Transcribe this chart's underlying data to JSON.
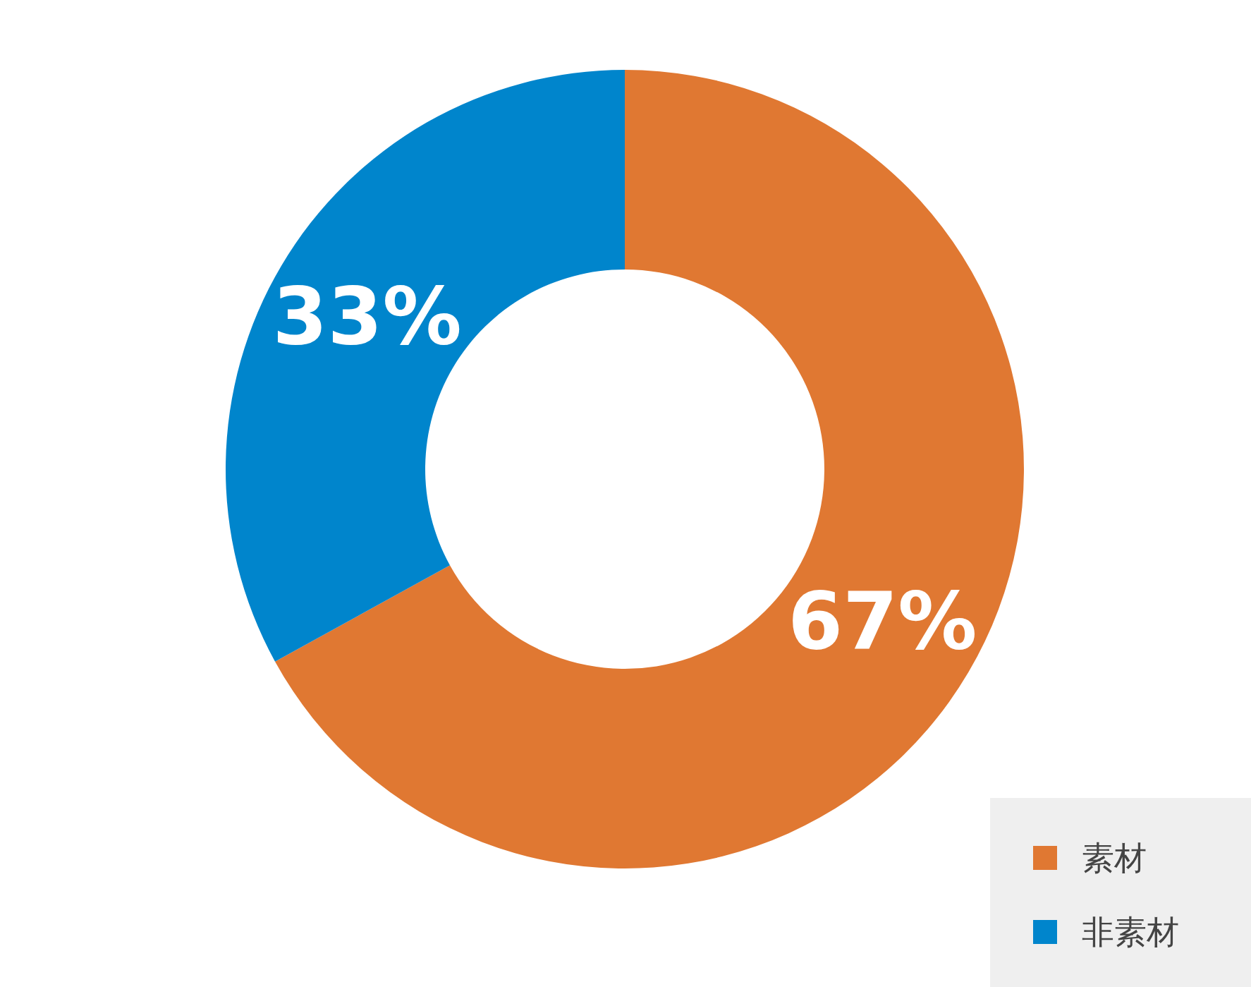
{
  "chart_data": {
    "type": "donut",
    "categories": [
      "素材",
      "非素材"
    ],
    "values": [
      67,
      33
    ],
    "colors": [
      "#e07832",
      "#0085cc"
    ],
    "value_labels": [
      "67%",
      "33%"
    ],
    "legend": "bottom right"
  }
}
